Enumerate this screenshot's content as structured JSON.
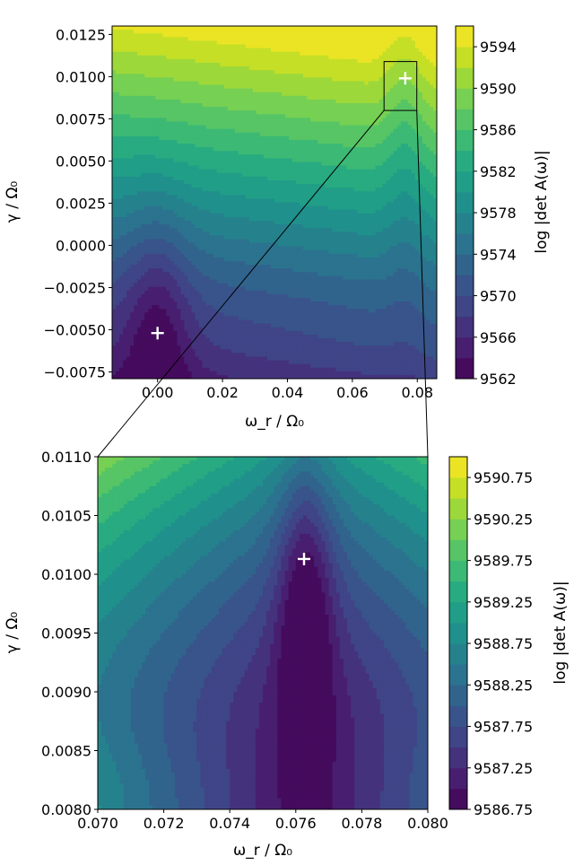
{
  "chart_data": [
    {
      "type": "contour",
      "colormap": "viridis",
      "xlabel": "ω_r / Ω₀",
      "ylabel": "γ / Ω₀",
      "colorbar_label": "log |det A(ω)|",
      "xlim": [
        -0.014,
        0.086
      ],
      "ylim": [
        -0.0079,
        0.013
      ],
      "xticks": [
        "0.00",
        "0.02",
        "0.04",
        "0.06",
        "0.08"
      ],
      "xtick_values": [
        0.0,
        0.02,
        0.04,
        0.06,
        0.08
      ],
      "yticks": [
        "−0.0075",
        "−0.0050",
        "−0.0025",
        "0.0000",
        "0.0025",
        "0.0050",
        "0.0075",
        "0.0100",
        "0.0125"
      ],
      "ytick_values": [
        -0.0075,
        -0.005,
        -0.0025,
        0.0,
        0.0025,
        0.005,
        0.0075,
        0.01,
        0.0125
      ],
      "colorbar_range": [
        9562,
        9596
      ],
      "colorbar_ticks": [
        "9562",
        "9566",
        "9570",
        "9574",
        "9578",
        "9582",
        "9586",
        "9590",
        "9594"
      ],
      "colorbar_tick_values": [
        9562,
        9566,
        9570,
        9574,
        9578,
        9582,
        9586,
        9590,
        9594
      ],
      "levels": 17,
      "markers": [
        {
          "x": 0.0,
          "y": -0.0052,
          "symbol": "+"
        },
        {
          "x": 0.0763,
          "y": 0.0099,
          "symbol": "+"
        }
      ],
      "zoom_box": {
        "x": [
          0.07,
          0.08
        ],
        "y": [
          0.008,
          0.011
        ]
      }
    },
    {
      "type": "contour",
      "colormap": "viridis",
      "xlabel": "ω_r / Ω₀",
      "ylabel": "γ / Ω₀",
      "colorbar_label": "log |det A(ω)|",
      "xlim": [
        0.07,
        0.08
      ],
      "ylim": [
        0.008,
        0.011
      ],
      "xticks": [
        "0.070",
        "0.072",
        "0.074",
        "0.076",
        "0.078",
        "0.080"
      ],
      "xtick_values": [
        0.07,
        0.072,
        0.074,
        0.076,
        0.078,
        0.08
      ],
      "yticks": [
        "0.0080",
        "0.0085",
        "0.0090",
        "0.0095",
        "0.0100",
        "0.0105",
        "0.0110"
      ],
      "ytick_values": [
        0.008,
        0.0085,
        0.009,
        0.0095,
        0.01,
        0.0105,
        0.011
      ],
      "colorbar_range": [
        9586.75,
        9591.0
      ],
      "colorbar_ticks": [
        "9586.75",
        "9587.25",
        "9587.75",
        "9588.25",
        "9588.75",
        "9589.25",
        "9589.75",
        "9590.25",
        "9590.75"
      ],
      "colorbar_tick_values": [
        9586.75,
        9587.25,
        9587.75,
        9588.25,
        9588.75,
        9589.25,
        9589.75,
        9590.25,
        9590.75
      ],
      "levels": 17,
      "markers": [
        {
          "x": 0.07625,
          "y": 0.01013,
          "symbol": "+"
        }
      ]
    }
  ]
}
